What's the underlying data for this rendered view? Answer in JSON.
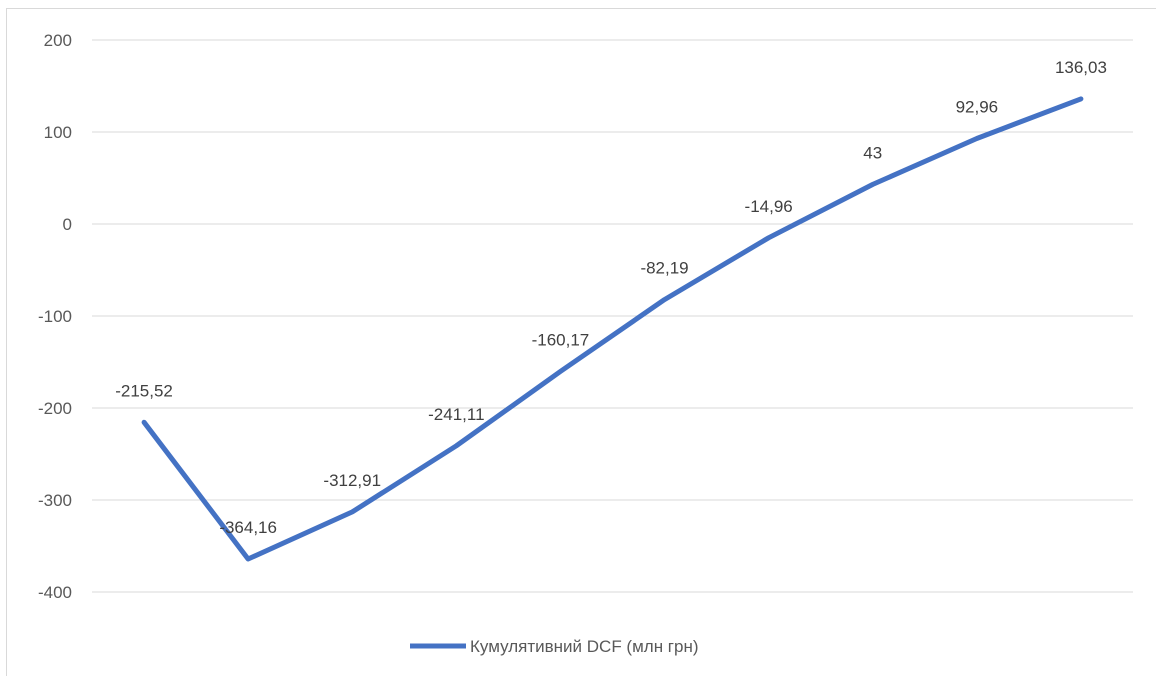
{
  "chart_data": {
    "type": "line",
    "title": "",
    "xlabel": "",
    "ylabel": "",
    "ylim": [
      -400,
      200
    ],
    "yticks": [
      200,
      100,
      0,
      -100,
      -200,
      -300,
      -400
    ],
    "ytick_labels": [
      "200",
      "100",
      "0",
      "-100",
      "-200",
      "-300",
      "-400"
    ],
    "grid": true,
    "legend_position": "bottom",
    "series": [
      {
        "name": "Кумулятивний DCF (млн грн)",
        "color": "#4472c4",
        "values": [
          -215.52,
          -364.16,
          -312.91,
          -241.11,
          -160.17,
          -82.19,
          -14.96,
          43,
          92.96,
          136.03
        ],
        "labels": [
          "-215,52",
          "-364,16",
          "-312,91",
          "-241,11",
          "-160,17",
          "-82,19",
          "-14,96",
          "43",
          "92,96",
          "136,03"
        ]
      }
    ]
  }
}
